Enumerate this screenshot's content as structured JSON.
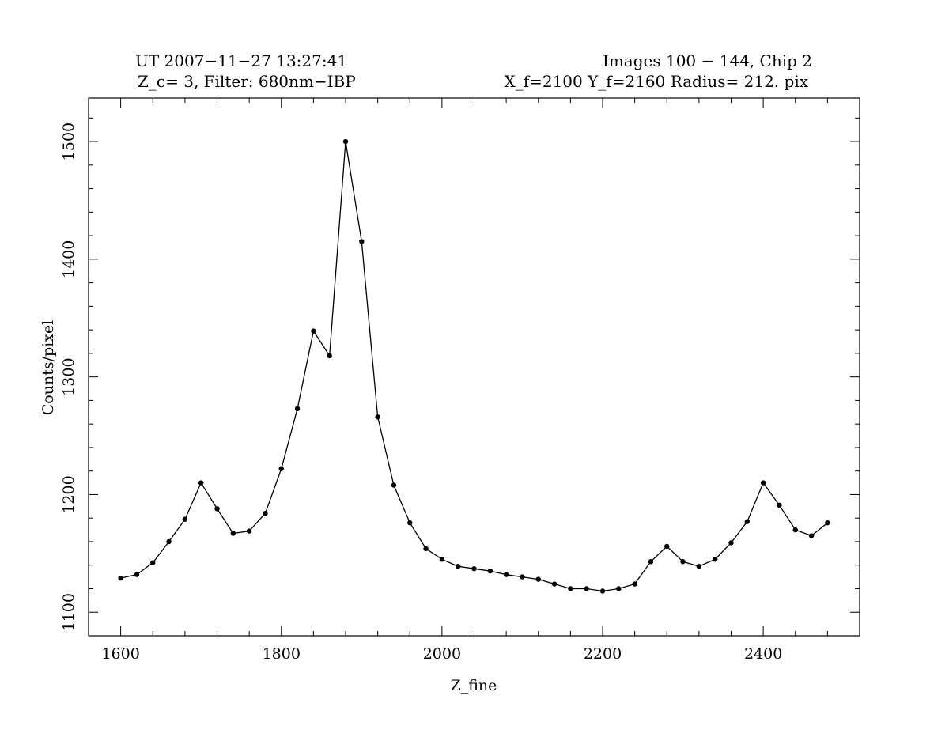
{
  "header": {
    "left_line1": "UT 2007−11−27 13:27:41",
    "left_line2": "Z_c= 3,  Filter: 680nm−IBP",
    "right_line1": "Images  100 −   144,  Chip 2",
    "right_line2": "X_f=2100  Y_f=2160  Radius= 212. pix"
  },
  "chart_data": {
    "type": "line",
    "title": "",
    "xlabel": "Z_fine",
    "ylabel": "Counts/pixel",
    "xlim": [
      1560,
      2520
    ],
    "ylim": [
      1080,
      1537
    ],
    "xticks": [
      1600,
      1800,
      2000,
      2200,
      2400
    ],
    "yticks": [
      1100,
      1200,
      1300,
      1400,
      1500
    ],
    "grid": false,
    "legend": "none",
    "markers": true,
    "line_color": "#000000",
    "series": [
      {
        "x": [
          1600,
          1620,
          1640,
          1660,
          1680,
          1700,
          1720,
          1740,
          1760,
          1780,
          1800,
          1820,
          1840,
          1860,
          1880,
          1900,
          1920,
          1940,
          1960,
          1980,
          2000,
          2020,
          2040,
          2060,
          2080,
          2100,
          2120,
          2140,
          2160,
          2180,
          2200,
          2220,
          2240,
          2260,
          2280,
          2300,
          2320,
          2340,
          2360,
          2380,
          2400,
          2420,
          2440,
          2460,
          2480
        ],
        "values": [
          1129,
          1132,
          1142,
          1160,
          1179,
          1210,
          1188,
          1167,
          1169,
          1184,
          1222,
          1273,
          1339,
          1318,
          1500,
          1415,
          1266,
          1208,
          1176,
          1154,
          1145,
          1139,
          1137,
          1135,
          1132,
          1130,
          1128,
          1124,
          1120,
          1120,
          1118,
          1120,
          1124,
          1143,
          1156,
          1143,
          1139,
          1145,
          1159,
          1177,
          1210,
          1191,
          1170,
          1165,
          1176
        ]
      }
    ]
  }
}
